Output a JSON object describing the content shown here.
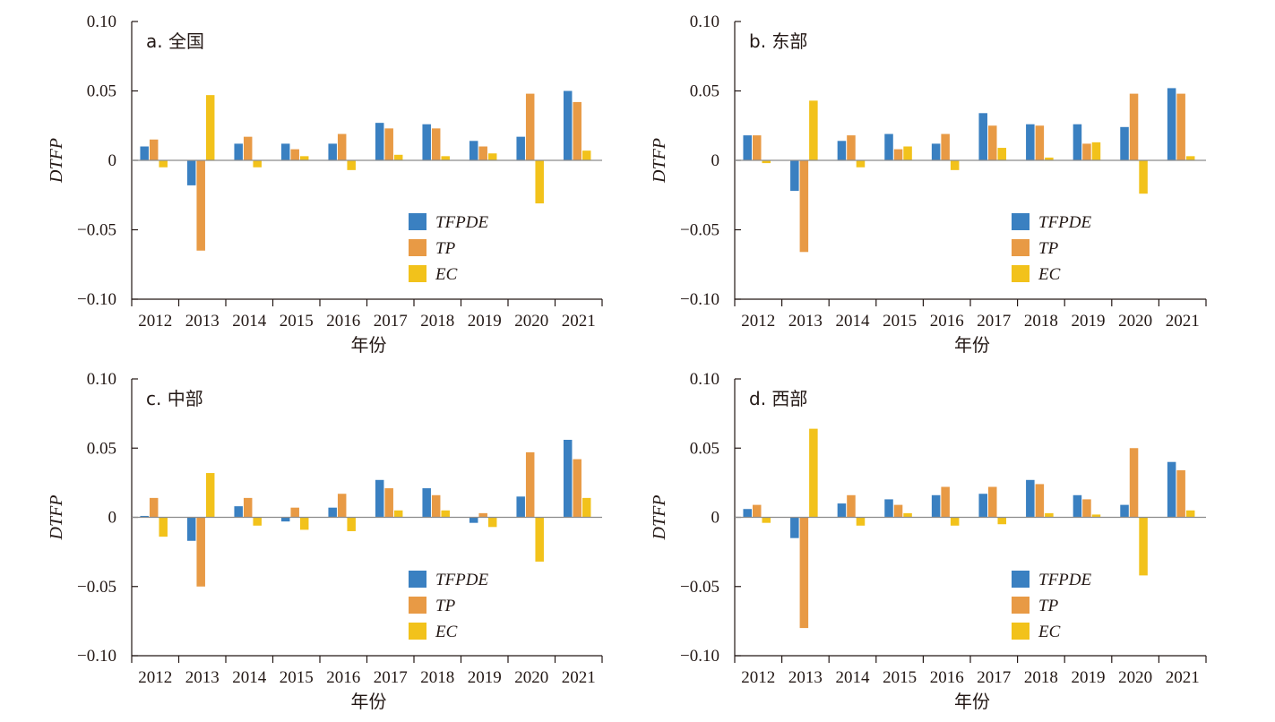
{
  "chart_data": [
    {
      "type": "bar",
      "title": "a. 全国",
      "xlabel": "年份",
      "ylabel": "DTFP",
      "ylim": [
        -0.1,
        0.1
      ],
      "yticks": [
        "0.10",
        "0.05",
        "0",
        "−0.05",
        "−0.10"
      ],
      "categories": [
        "2012",
        "2013",
        "2014",
        "2015",
        "2016",
        "2017",
        "2018",
        "2019",
        "2020",
        "2021"
      ],
      "series": [
        {
          "name": "TFPDE",
          "color": "#3a80c1",
          "values": [
            0.01,
            -0.018,
            0.012,
            0.012,
            0.012,
            0.027,
            0.026,
            0.014,
            0.017,
            0.05
          ]
        },
        {
          "name": "TP",
          "color": "#e89a45",
          "values": [
            0.015,
            -0.065,
            0.017,
            0.008,
            0.019,
            0.023,
            0.023,
            0.01,
            0.048,
            0.042
          ]
        },
        {
          "name": "EC",
          "color": "#f2c21b",
          "values": [
            -0.005,
            0.047,
            -0.005,
            0.003,
            -0.007,
            0.004,
            0.003,
            0.005,
            -0.031,
            0.007
          ]
        }
      ],
      "legend_position": "lower-right",
      "grid": false
    },
    {
      "type": "bar",
      "title": "b. 东部",
      "xlabel": "年份",
      "ylabel": "DTFP",
      "ylim": [
        -0.1,
        0.1
      ],
      "yticks": [
        "0.10",
        "0.05",
        "0",
        "−0.05",
        "−0.10"
      ],
      "categories": [
        "2012",
        "2013",
        "2014",
        "2015",
        "2016",
        "2017",
        "2018",
        "2019",
        "2020",
        "2021"
      ],
      "series": [
        {
          "name": "TFPDE",
          "color": "#3a80c1",
          "values": [
            0.018,
            -0.022,
            0.014,
            0.019,
            0.012,
            0.034,
            0.026,
            0.026,
            0.024,
            0.052
          ]
        },
        {
          "name": "TP",
          "color": "#e89a45",
          "values": [
            0.018,
            -0.066,
            0.018,
            0.008,
            0.019,
            0.025,
            0.025,
            0.012,
            0.048,
            0.048
          ]
        },
        {
          "name": "EC",
          "color": "#f2c21b",
          "values": [
            -0.002,
            0.043,
            -0.005,
            0.01,
            -0.007,
            0.009,
            0.002,
            0.013,
            -0.024,
            0.003
          ]
        }
      ],
      "legend_position": "lower-right",
      "grid": false
    },
    {
      "type": "bar",
      "title": "c. 中部",
      "xlabel": "年份",
      "ylabel": "DTFP",
      "ylim": [
        -0.1,
        0.1
      ],
      "yticks": [
        "0.10",
        "0.05",
        "0",
        "−0.05",
        "−0.10"
      ],
      "categories": [
        "2012",
        "2013",
        "2014",
        "2015",
        "2016",
        "2017",
        "2018",
        "2019",
        "2020",
        "2021"
      ],
      "series": [
        {
          "name": "TFPDE",
          "color": "#3a80c1",
          "values": [
            0.001,
            -0.017,
            0.008,
            -0.003,
            0.007,
            0.027,
            0.021,
            -0.004,
            0.015,
            0.056
          ]
        },
        {
          "name": "TP",
          "color": "#e89a45",
          "values": [
            0.014,
            -0.05,
            0.014,
            0.007,
            0.017,
            0.021,
            0.016,
            0.003,
            0.047,
            0.042
          ]
        },
        {
          "name": "EC",
          "color": "#f2c21b",
          "values": [
            -0.014,
            0.032,
            -0.006,
            -0.009,
            -0.01,
            0.005,
            0.005,
            -0.007,
            -0.032,
            0.014
          ]
        }
      ],
      "legend_position": "lower-right",
      "grid": false
    },
    {
      "type": "bar",
      "title": "d. 西部",
      "xlabel": "年份",
      "ylabel": "DTFP",
      "ylim": [
        -0.1,
        0.1
      ],
      "yticks": [
        "0.10",
        "0.05",
        "0",
        "−0.05",
        "−0.10"
      ],
      "categories": [
        "2012",
        "2013",
        "2014",
        "2015",
        "2016",
        "2017",
        "2018",
        "2019",
        "2020",
        "2021"
      ],
      "series": [
        {
          "name": "TFPDE",
          "color": "#3a80c1",
          "values": [
            0.006,
            -0.015,
            0.01,
            0.013,
            0.016,
            0.017,
            0.027,
            0.016,
            0.009,
            0.04
          ]
        },
        {
          "name": "TP",
          "color": "#e89a45",
          "values": [
            0.009,
            -0.08,
            0.016,
            0.009,
            0.022,
            0.022,
            0.024,
            0.013,
            0.05,
            0.034
          ]
        },
        {
          "name": "EC",
          "color": "#f2c21b",
          "values": [
            -0.004,
            0.064,
            -0.006,
            0.003,
            -0.006,
            -0.005,
            0.003,
            0.002,
            -0.042,
            0.005
          ]
        }
      ],
      "legend_position": "lower-right",
      "grid": false
    }
  ]
}
